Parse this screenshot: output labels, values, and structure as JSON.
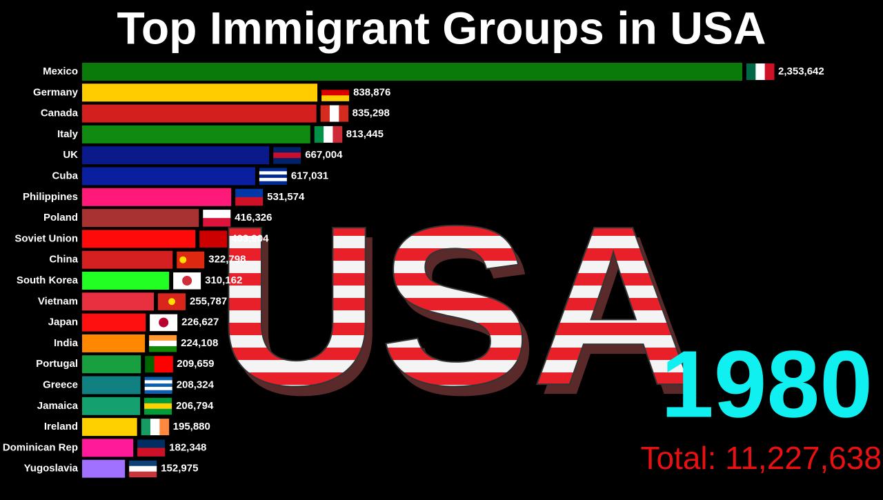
{
  "chart_data": {
    "type": "bar",
    "orientation": "horizontal",
    "title": "Top Immigrant Groups in USA",
    "watermark": "USA",
    "year": "1980",
    "total": "Total: 11,227,638",
    "categories": [
      "Mexico",
      "Germany",
      "Canada",
      "Italy",
      "UK",
      "Cuba",
      "Philippines",
      "Poland",
      "Soviet Union",
      "China",
      "South Korea",
      "Vietnam",
      "Japan",
      "India",
      "Portugal",
      "Greece",
      "Jamaica",
      "Ireland",
      "Dominican Rep",
      "Yugoslavia"
    ],
    "values": [
      2353642,
      838876,
      835298,
      813445,
      667004,
      617031,
      531574,
      416326,
      403904,
      322798,
      310162,
      255787,
      226627,
      224108,
      209659,
      208324,
      206794,
      195880,
      182348,
      152975
    ],
    "value_labels": [
      "2,353,642",
      "838,876",
      "835,298",
      "813,445",
      "667,004",
      "617,031",
      "531,574",
      "416,326",
      "403,904",
      "322,798",
      "310,162",
      "255,787",
      "226,627",
      "224,108",
      "209,659",
      "208,324",
      "206,794",
      "195,880",
      "182,348",
      "152,975"
    ],
    "colors": [
      "#0a7a0a",
      "#ffcc00",
      "#d41f1f",
      "#118a11",
      "#0a1a8a",
      "#0a1fa0",
      "#ff1a7a",
      "#a83232",
      "#ff0a0a",
      "#d42020",
      "#22ff22",
      "#e83040",
      "#ff1010",
      "#ff8800",
      "#18a040",
      "#108080",
      "#15a070",
      "#ffd000",
      "#ff1a9a",
      "#a070ff"
    ]
  }
}
